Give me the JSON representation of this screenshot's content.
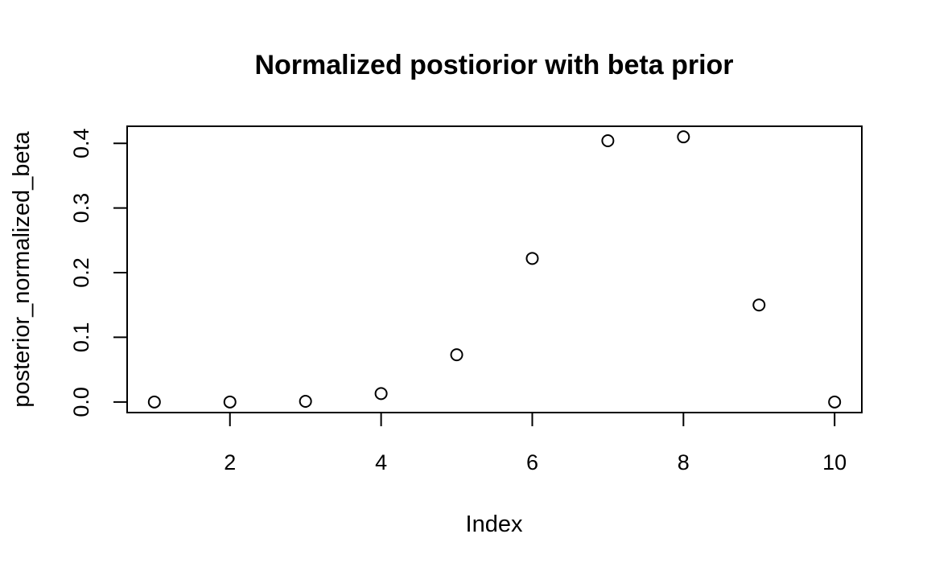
{
  "chart_data": {
    "type": "scatter",
    "title": "Normalized postiorior with beta prior",
    "xlabel": "Index",
    "ylabel": "posterior_normalized_beta",
    "x": [
      1,
      2,
      3,
      4,
      5,
      6,
      7,
      8,
      9,
      10
    ],
    "y": [
      0.0,
      0.0,
      0.001,
      0.013,
      0.073,
      0.222,
      0.404,
      0.41,
      0.15,
      0.0
    ],
    "xlim": [
      0.64,
      10.36
    ],
    "ylim": [
      -0.0164,
      0.4264
    ],
    "xticks": [
      2,
      4,
      6,
      8,
      10
    ],
    "xtick_labels": [
      "2",
      "4",
      "6",
      "8",
      "10"
    ],
    "yticks": [
      0.0,
      0.1,
      0.2,
      0.3,
      0.4
    ],
    "ytick_labels": [
      "0.0",
      "0.1",
      "0.2",
      "0.3",
      "0.4"
    ],
    "grid": false,
    "marker": "open-circle",
    "colors": {
      "marker": "#000000",
      "axes": "#000000",
      "background": "#ffffff"
    }
  }
}
